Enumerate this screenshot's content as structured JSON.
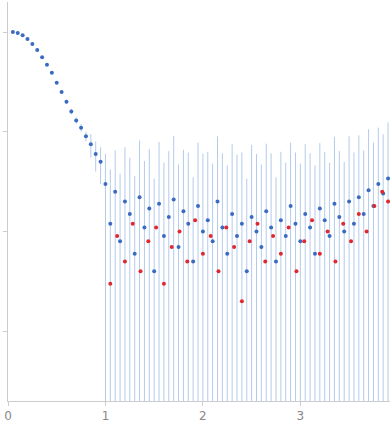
{
  "chart_data": {
    "type": "scatter",
    "log": "y",
    "grid": false,
    "tick_labels": "x",
    "xlim": [
      0,
      3.92
    ],
    "xticks": [
      0,
      1,
      2,
      3
    ],
    "ylim": [
      0.0002,
      2
    ],
    "yticks": [
      0.001,
      0.01,
      0.1,
      1
    ],
    "series": [
      {
        "color": "#3a6bc2",
        "marker": "circle",
        "x": [
          0.05,
          0.1,
          0.15,
          0.2,
          0.25,
          0.3,
          0.35,
          0.4,
          0.45,
          0.5,
          0.55,
          0.6,
          0.65,
          0.7,
          0.75,
          0.8,
          0.85,
          0.9,
          0.95,
          1.0,
          1.05,
          1.1,
          1.15,
          1.2,
          1.25,
          1.3,
          1.35,
          1.4,
          1.45,
          1.5,
          1.55,
          1.6,
          1.65,
          1.7,
          1.75,
          1.8,
          1.85,
          1.9,
          1.95,
          2.0,
          2.05,
          2.1,
          2.15,
          2.2,
          2.25,
          2.3,
          2.35,
          2.4,
          2.45,
          2.5,
          2.55,
          2.6,
          2.65,
          2.7,
          2.75,
          2.8,
          2.85,
          2.9,
          2.95,
          3.0,
          3.05,
          3.1,
          3.15,
          3.2,
          3.25,
          3.3,
          3.35,
          3.4,
          3.45,
          3.5,
          3.55,
          3.6,
          3.65,
          3.7,
          3.75,
          3.8,
          3.85,
          3.9
        ],
        "values": [
          1.0,
          0.98,
          0.93,
          0.85,
          0.76,
          0.66,
          0.56,
          0.47,
          0.39,
          0.31,
          0.25,
          0.2,
          0.16,
          0.13,
          0.11,
          0.09,
          0.075,
          0.06,
          0.05,
          0.03,
          0.012,
          0.025,
          0.008,
          0.02,
          0.015,
          0.006,
          0.022,
          0.011,
          0.017,
          0.004,
          0.019,
          0.009,
          0.014,
          0.021,
          0.007,
          0.016,
          0.012,
          0.005,
          0.018,
          0.01,
          0.013,
          0.008,
          0.02,
          0.011,
          0.006,
          0.015,
          0.009,
          0.012,
          0.004,
          0.014,
          0.01,
          0.007,
          0.016,
          0.011,
          0.005,
          0.013,
          0.009,
          0.018,
          0.012,
          0.008,
          0.015,
          0.011,
          0.006,
          0.017,
          0.013,
          0.009,
          0.019,
          0.014,
          0.01,
          0.02,
          0.012,
          0.022,
          0.015,
          0.026,
          0.018,
          0.03,
          0.024,
          0.034
        ],
        "error": [
          0.01,
          0.01,
          0.01,
          0.01,
          0.01,
          0.01,
          0.01,
          0.01,
          0.01,
          0.01,
          0.01,
          0.01,
          0.01,
          0.01,
          0.01,
          0.01,
          0.02,
          0.02,
          0.02,
          0.03,
          0.03,
          0.04,
          0.03,
          0.05,
          0.04,
          0.03,
          0.06,
          0.04,
          0.05,
          0.03,
          0.06,
          0.04,
          0.05,
          0.07,
          0.04,
          0.05,
          0.05,
          0.03,
          0.06,
          0.05,
          0.05,
          0.04,
          0.07,
          0.05,
          0.04,
          0.06,
          0.05,
          0.05,
          0.03,
          0.06,
          0.05,
          0.04,
          0.06,
          0.05,
          0.03,
          0.05,
          0.04,
          0.06,
          0.05,
          0.04,
          0.06,
          0.05,
          0.04,
          0.06,
          0.05,
          0.04,
          0.07,
          0.05,
          0.04,
          0.07,
          0.05,
          0.07,
          0.05,
          0.08,
          0.06,
          0.08,
          0.07,
          0.09
        ]
      },
      {
        "color": "#e0282e",
        "marker": "circle",
        "x": [
          1.05,
          1.12,
          1.2,
          1.28,
          1.36,
          1.44,
          1.52,
          1.6,
          1.68,
          1.76,
          1.84,
          1.92,
          2.0,
          2.08,
          2.16,
          2.24,
          2.32,
          2.4,
          2.48,
          2.56,
          2.64,
          2.72,
          2.8,
          2.88,
          2.96,
          3.04,
          3.12,
          3.2,
          3.28,
          3.36,
          3.44,
          3.52,
          3.6,
          3.68,
          3.76,
          3.84,
          3.9
        ],
        "values": [
          0.003,
          0.009,
          0.005,
          0.012,
          0.004,
          0.008,
          0.011,
          0.003,
          0.007,
          0.01,
          0.005,
          0.013,
          0.006,
          0.009,
          0.004,
          0.011,
          0.007,
          0.002,
          0.008,
          0.012,
          0.005,
          0.009,
          0.006,
          0.011,
          0.004,
          0.008,
          0.013,
          0.006,
          0.01,
          0.005,
          0.012,
          0.008,
          0.015,
          0.01,
          0.018,
          0.025,
          0.02
        ]
      }
    ]
  }
}
